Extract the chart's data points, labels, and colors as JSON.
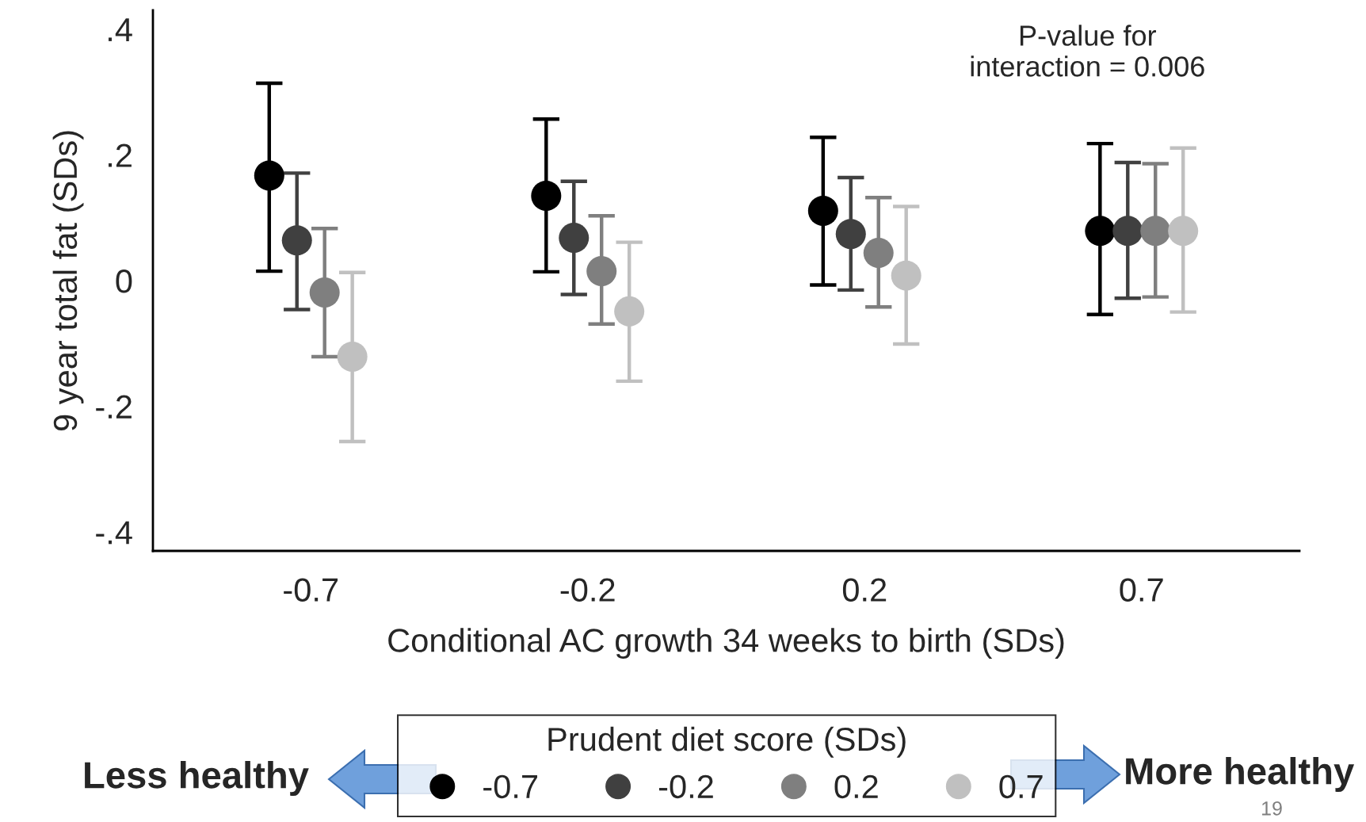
{
  "chart_data": {
    "type": "scatter",
    "xlabel": "Conditional AC growth 34 weeks to birth (SDs)",
    "ylabel": "9 year total fat (SDs)",
    "legend_title": "Prudent diet score (SDs)",
    "categories": [
      "-0.7",
      "-0.2",
      "0.2",
      "0.7"
    ],
    "series": [
      {
        "name": "-0.7",
        "color": "#000000",
        "values": [
          0.167,
          0.135,
          0.111,
          0.079
        ],
        "errors": [
          [
            0.015,
            0.314
          ],
          [
            0.014,
            0.257
          ],
          [
            -0.007,
            0.228
          ],
          [
            -0.054,
            0.218
          ]
        ]
      },
      {
        "name": "-0.2",
        "color": "#404040",
        "values": [
          0.064,
          0.068,
          0.074,
          0.079
        ],
        "errors": [
          [
            -0.046,
            0.171
          ],
          [
            -0.022,
            0.158
          ],
          [
            -0.015,
            0.164
          ],
          [
            -0.028,
            0.188
          ]
        ]
      },
      {
        "name": "0.2",
        "color": "#7f7f7f",
        "values": [
          -0.019,
          0.015,
          0.044,
          0.079
        ],
        "errors": [
          [
            -0.121,
            0.083
          ],
          [
            -0.069,
            0.103
          ],
          [
            -0.042,
            0.132
          ],
          [
            -0.026,
            0.186
          ]
        ]
      },
      {
        "name": "0.7",
        "color": "#c0c0c0",
        "values": [
          -0.121,
          -0.049,
          0.008,
          0.079
        ],
        "errors": [
          [
            -0.256,
            0.013
          ],
          [
            -0.16,
            0.061
          ],
          [
            -0.101,
            0.118
          ],
          [
            -0.05,
            0.211
          ]
        ]
      }
    ],
    "ylim": [
      -0.43,
      0.43
    ],
    "yticks": [
      {
        "value": 0.4,
        "label": ".4"
      },
      {
        "value": 0.2,
        "label": ".2"
      },
      0,
      {
        "value": -0.2,
        "label": "-.2"
      },
      {
        "value": -0.4,
        "label": "-.4"
      }
    ],
    "marker": "circle",
    "grid": false,
    "legend": "bottom",
    "annotations": [
      "P-value for\ninteraction = 0.006",
      "Less healthy",
      "More healthy",
      "19"
    ]
  }
}
